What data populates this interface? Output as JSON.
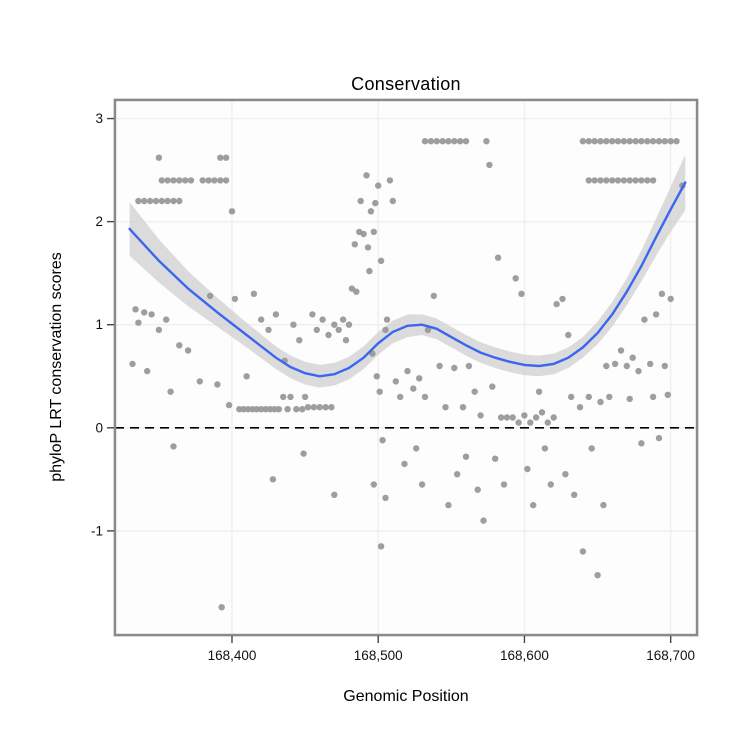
{
  "chart_data": {
    "type": "scatter",
    "title": "Conservation",
    "xlabel": "Genomic Position",
    "ylabel": "phyloP LRT conservation scores",
    "xlim": [
      168320,
      168718
    ],
    "ylim": [
      -2.01,
      3.18
    ],
    "grid": true,
    "x_ticks": [
      {
        "value": 168400,
        "label": "168,400"
      },
      {
        "value": 168500,
        "label": "168,500"
      },
      {
        "value": 168600,
        "label": "168,600"
      },
      {
        "value": 168700,
        "label": "168,700"
      }
    ],
    "y_ticks": [
      {
        "value": -1,
        "label": "-1"
      },
      {
        "value": 0,
        "label": "0"
      },
      {
        "value": 1,
        "label": "1"
      },
      {
        "value": 2,
        "label": "2"
      },
      {
        "value": 3,
        "label": "3"
      }
    ],
    "reference_line_y": 0,
    "colors": {
      "point": "#999999",
      "line": "#3A66F0",
      "band": "#c9c9c9",
      "grid": "#efefef",
      "frame": "#8a8a8a",
      "dashed": "#000000",
      "panel_bg": "#fdfdfd"
    },
    "smooth": {
      "x": [
        168330,
        168350,
        168370,
        168390,
        168410,
        168430,
        168440,
        168450,
        168460,
        168470,
        168480,
        168490,
        168500,
        168510,
        168520,
        168530,
        168540,
        168550,
        168560,
        168570,
        168580,
        168590,
        168600,
        168610,
        168620,
        168630,
        168640,
        168650,
        168660,
        168670,
        168680,
        168690,
        168700,
        168710
      ],
      "y": [
        1.93,
        1.62,
        1.35,
        1.12,
        0.9,
        0.68,
        0.59,
        0.53,
        0.5,
        0.52,
        0.58,
        0.68,
        0.82,
        0.93,
        0.99,
        1.0,
        0.96,
        0.88,
        0.8,
        0.73,
        0.68,
        0.64,
        0.61,
        0.6,
        0.62,
        0.68,
        0.78,
        0.92,
        1.1,
        1.32,
        1.57,
        1.85,
        2.12,
        2.38
      ],
      "halfwidth": [
        0.26,
        0.21,
        0.17,
        0.14,
        0.12,
        0.11,
        0.11,
        0.11,
        0.11,
        0.11,
        0.11,
        0.11,
        0.11,
        0.11,
        0.11,
        0.1,
        0.1,
        0.1,
        0.1,
        0.1,
        0.1,
        0.1,
        0.1,
        0.1,
        0.1,
        0.1,
        0.1,
        0.11,
        0.12,
        0.13,
        0.15,
        0.18,
        0.22,
        0.27
      ]
    },
    "points": [
      [
        168352,
        2.4
      ],
      [
        168356,
        2.4
      ],
      [
        168360,
        2.4
      ],
      [
        168364,
        2.4
      ],
      [
        168368,
        2.4
      ],
      [
        168372,
        2.4
      ],
      [
        168380,
        2.4
      ],
      [
        168384,
        2.4
      ],
      [
        168388,
        2.4
      ],
      [
        168392,
        2.4
      ],
      [
        168396,
        2.4
      ],
      [
        168336,
        2.2
      ],
      [
        168340,
        2.2
      ],
      [
        168344,
        2.2
      ],
      [
        168348,
        2.2
      ],
      [
        168352,
        2.2
      ],
      [
        168356,
        2.2
      ],
      [
        168360,
        2.2
      ],
      [
        168364,
        2.2
      ],
      [
        168350,
        2.62
      ],
      [
        168392,
        2.62
      ],
      [
        168396,
        2.62
      ],
      [
        168400,
        2.1
      ],
      [
        168332,
        0.62
      ],
      [
        168334,
        1.15
      ],
      [
        168336,
        1.02
      ],
      [
        168340,
        1.12
      ],
      [
        168342,
        0.55
      ],
      [
        168345,
        1.1
      ],
      [
        168350,
        0.95
      ],
      [
        168355,
        1.05
      ],
      [
        168358,
        0.35
      ],
      [
        168360,
        -0.18
      ],
      [
        168364,
        0.8
      ],
      [
        168370,
        0.75
      ],
      [
        168378,
        0.45
      ],
      [
        168385,
        1.28
      ],
      [
        168390,
        0.42
      ],
      [
        168393,
        -1.74
      ],
      [
        168398,
        0.22
      ],
      [
        168402,
        1.25
      ],
      [
        168405,
        0.18
      ],
      [
        168408,
        0.18
      ],
      [
        168411,
        0.18
      ],
      [
        168414,
        0.18
      ],
      [
        168417,
        0.18
      ],
      [
        168420,
        0.18
      ],
      [
        168423,
        0.18
      ],
      [
        168426,
        0.18
      ],
      [
        168429,
        0.18
      ],
      [
        168432,
        0.18
      ],
      [
        168435,
        0.3
      ],
      [
        168438,
        0.18
      ],
      [
        168440,
        0.3
      ],
      [
        168444,
        0.18
      ],
      [
        168448,
        0.18
      ],
      [
        168450,
        0.3
      ],
      [
        168452,
        0.2
      ],
      [
        168456,
        0.2
      ],
      [
        168460,
        0.2
      ],
      [
        168464,
        0.2
      ],
      [
        168468,
        0.2
      ],
      [
        168410,
        0.5
      ],
      [
        168415,
        1.3
      ],
      [
        168420,
        1.05
      ],
      [
        168425,
        0.95
      ],
      [
        168428,
        -0.5
      ],
      [
        168430,
        1.1
      ],
      [
        168436,
        0.65
      ],
      [
        168442,
        1.0
      ],
      [
        168446,
        0.85
      ],
      [
        168449,
        -0.25
      ],
      [
        168455,
        1.1
      ],
      [
        168458,
        0.95
      ],
      [
        168462,
        1.05
      ],
      [
        168466,
        0.9
      ],
      [
        168470,
        1.0
      ],
      [
        168470,
        -0.65
      ],
      [
        168473,
        0.95
      ],
      [
        168476,
        1.05
      ],
      [
        168478,
        0.85
      ],
      [
        168480,
        1.0
      ],
      [
        168482,
        1.35
      ],
      [
        168485,
        1.32
      ],
      [
        168484,
        1.78
      ],
      [
        168487,
        1.9
      ],
      [
        168490,
        1.88
      ],
      [
        168493,
        1.75
      ],
      [
        168495,
        2.1
      ],
      [
        168497,
        1.9
      ],
      [
        168488,
        2.2
      ],
      [
        168492,
        2.45
      ],
      [
        168498,
        2.18
      ],
      [
        168500,
        2.35
      ],
      [
        168502,
        1.62
      ],
      [
        168494,
        1.52
      ],
      [
        168496,
        0.72
      ],
      [
        168499,
        0.5
      ],
      [
        168501,
        0.35
      ],
      [
        168503,
        -0.12
      ],
      [
        168497,
        -0.55
      ],
      [
        168505,
        -0.68
      ],
      [
        168502,
        -1.15
      ],
      [
        168506,
        1.05
      ],
      [
        168508,
        2.4
      ],
      [
        168510,
        2.2
      ],
      [
        168505,
        0.95
      ],
      [
        168512,
        0.45
      ],
      [
        168515,
        0.3
      ],
      [
        168518,
        -0.35
      ],
      [
        168520,
        0.55
      ],
      [
        168524,
        0.38
      ],
      [
        168526,
        -0.2
      ],
      [
        168528,
        0.48
      ],
      [
        168530,
        -0.55
      ],
      [
        168532,
        0.3
      ],
      [
        168534,
        0.95
      ],
      [
        168532,
        2.78
      ],
      [
        168536,
        2.78
      ],
      [
        168540,
        2.78
      ],
      [
        168544,
        2.78
      ],
      [
        168548,
        2.78
      ],
      [
        168552,
        2.78
      ],
      [
        168556,
        2.78
      ],
      [
        168560,
        2.78
      ],
      [
        168574,
        2.78
      ],
      [
        168576,
        2.55
      ],
      [
        168538,
        1.28
      ],
      [
        168542,
        0.6
      ],
      [
        168546,
        0.2
      ],
      [
        168548,
        -0.75
      ],
      [
        168552,
        0.58
      ],
      [
        168554,
        -0.45
      ],
      [
        168558,
        0.2
      ],
      [
        168560,
        -0.28
      ],
      [
        168562,
        0.6
      ],
      [
        168566,
        0.35
      ],
      [
        168568,
        -0.6
      ],
      [
        168570,
        0.12
      ],
      [
        168572,
        -0.9
      ],
      [
        168578,
        0.4
      ],
      [
        168580,
        -0.3
      ],
      [
        168582,
        1.65
      ],
      [
        168584,
        0.1
      ],
      [
        168586,
        -0.55
      ],
      [
        168588,
        0.1
      ],
      [
        168592,
        0.1
      ],
      [
        168596,
        0.05
      ],
      [
        168600,
        0.12
      ],
      [
        168604,
        0.05
      ],
      [
        168608,
        0.1
      ],
      [
        168612,
        0.15
      ],
      [
        168616,
        0.05
      ],
      [
        168620,
        0.1
      ],
      [
        168594,
        1.45
      ],
      [
        168598,
        1.3
      ],
      [
        168602,
        -0.4
      ],
      [
        168606,
        -0.75
      ],
      [
        168610,
        0.35
      ],
      [
        168614,
        -0.2
      ],
      [
        168618,
        -0.55
      ],
      [
        168622,
        1.2
      ],
      [
        168626,
        1.25
      ],
      [
        168630,
        0.9
      ],
      [
        168628,
        -0.45
      ],
      [
        168632,
        0.3
      ],
      [
        168634,
        -0.65
      ],
      [
        168638,
        0.2
      ],
      [
        168640,
        -1.2
      ],
      [
        168644,
        0.3
      ],
      [
        168646,
        -0.2
      ],
      [
        168650,
        -1.43
      ],
      [
        168652,
        0.25
      ],
      [
        168654,
        -0.75
      ],
      [
        168656,
        0.6
      ],
      [
        168658,
        0.3
      ],
      [
        168640,
        2.78
      ],
      [
        168644,
        2.78
      ],
      [
        168648,
        2.78
      ],
      [
        168652,
        2.78
      ],
      [
        168656,
        2.78
      ],
      [
        168660,
        2.78
      ],
      [
        168664,
        2.78
      ],
      [
        168668,
        2.78
      ],
      [
        168672,
        2.78
      ],
      [
        168676,
        2.78
      ],
      [
        168680,
        2.78
      ],
      [
        168684,
        2.78
      ],
      [
        168688,
        2.78
      ],
      [
        168692,
        2.78
      ],
      [
        168696,
        2.78
      ],
      [
        168700,
        2.78
      ],
      [
        168704,
        2.78
      ],
      [
        168644,
        2.4
      ],
      [
        168648,
        2.4
      ],
      [
        168652,
        2.4
      ],
      [
        168656,
        2.4
      ],
      [
        168660,
        2.4
      ],
      [
        168664,
        2.4
      ],
      [
        168668,
        2.4
      ],
      [
        168672,
        2.4
      ],
      [
        168676,
        2.4
      ],
      [
        168680,
        2.4
      ],
      [
        168684,
        2.4
      ],
      [
        168688,
        2.4
      ],
      [
        168708,
        2.35
      ],
      [
        168662,
        0.62
      ],
      [
        168666,
        0.75
      ],
      [
        168670,
        0.6
      ],
      [
        168674,
        0.68
      ],
      [
        168678,
        0.55
      ],
      [
        168682,
        1.05
      ],
      [
        168686,
        0.62
      ],
      [
        168690,
        1.1
      ],
      [
        168694,
        1.3
      ],
      [
        168696,
        0.6
      ],
      [
        168700,
        1.25
      ],
      [
        168688,
        0.3
      ],
      [
        168692,
        -0.1
      ],
      [
        168698,
        0.32
      ],
      [
        168680,
        -0.15
      ],
      [
        168672,
        0.28
      ]
    ]
  }
}
